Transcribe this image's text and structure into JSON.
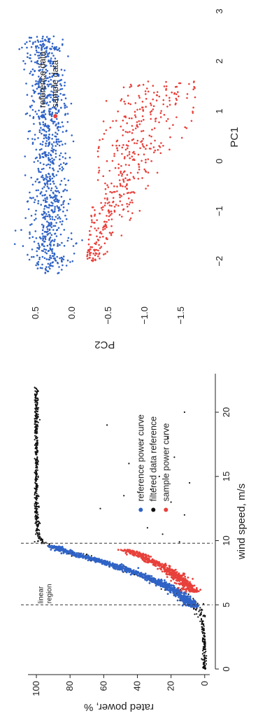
{
  "colors": {
    "reference": "#2f63c6",
    "filtered": "#111111",
    "sample": "#e8403a",
    "axis": "#222222",
    "vline": "#333333"
  },
  "chart_data": [
    {
      "type": "scatter",
      "xlabel": "wind speed, m/s",
      "ylabel": "rated power, %",
      "xlim": [
        0,
        23
      ],
      "ylim": [
        -3,
        105
      ],
      "x_ticks": [
        0,
        5,
        10,
        15,
        20
      ],
      "y_ticks": [
        0,
        20,
        40,
        60,
        80,
        100
      ],
      "x_tick_labels": [
        "0",
        "5",
        "10",
        "15",
        "20"
      ],
      "y_tick_labels": [
        "0",
        "20",
        "40",
        "60",
        "80",
        "100"
      ],
      "vertical_lines": [
        5,
        9.8
      ],
      "annotation": {
        "text_line1": "linear",
        "text_line2": "region",
        "x": 6.2,
        "y": 96
      },
      "legend_position": "bottom-right",
      "series": [
        {
          "name": "reference power curve",
          "color_key": "reference",
          "x_range": [
            4.8,
            9.6
          ],
          "note": "dense band along cubic curve"
        },
        {
          "name": "filtered data reference",
          "color_key": "filtered",
          "x_range": [
            0,
            22
          ]
        },
        {
          "name": "sample power curve",
          "color_key": "sample",
          "x_range": [
            6.0,
            9.3
          ]
        }
      ],
      "curve_anchor_points": [
        [
          0,
          0
        ],
        [
          3,
          0.5
        ],
        [
          4,
          2
        ],
        [
          5,
          7
        ],
        [
          6,
          16
        ],
        [
          7,
          31
        ],
        [
          8,
          52
        ],
        [
          9,
          78
        ],
        [
          9.8,
          96
        ],
        [
          10.5,
          99
        ],
        [
          12,
          100
        ],
        [
          22,
          100
        ]
      ],
      "sample_curve_anchor_points": [
        [
          6.0,
          7
        ],
        [
          7,
          14
        ],
        [
          8,
          25
        ],
        [
          9,
          41
        ],
        [
          9.3,
          48
        ]
      ]
    },
    {
      "type": "scatter",
      "xlabel": "PC1",
      "ylabel": "PC2",
      "xlim": [
        -2.6,
        3.0
      ],
      "ylim": [
        -1.8,
        0.8
      ],
      "x_ticks": [
        -2,
        -1,
        0,
        1,
        2,
        3
      ],
      "y_ticks": [
        0.5,
        0.0,
        -0.5,
        -1.0,
        -1.5
      ],
      "x_tick_labels": [
        "−2",
        "−1",
        "0",
        "1",
        "2",
        "3"
      ],
      "y_tick_labels": [
        "0.5",
        "0.0",
        "−0.5",
        "−1.0",
        "−1.5"
      ],
      "legend_position": "top-right",
      "series": [
        {
          "name": "reference data",
          "color_key": "reference",
          "x_range": [
            -2.2,
            2.5
          ],
          "y_center": 0.3
        },
        {
          "name": "sample data",
          "color_key": "sample",
          "x_range": [
            -2.0,
            1.6
          ],
          "note": "V shaped cloud descending to about -1.6"
        }
      ]
    }
  ],
  "texts": {
    "left": {
      "ylabel": "rated power, %",
      "xlabel": "wind speed, m/s",
      "ann1": "linear",
      "ann2": "region",
      "leg1": "reference power curve",
      "leg2": "filtered data reference",
      "leg3": "sample power curve"
    },
    "right": {
      "ylabel": "PC2",
      "xlabel": "PC1",
      "leg1": "reference data",
      "leg2": "sample data"
    }
  }
}
